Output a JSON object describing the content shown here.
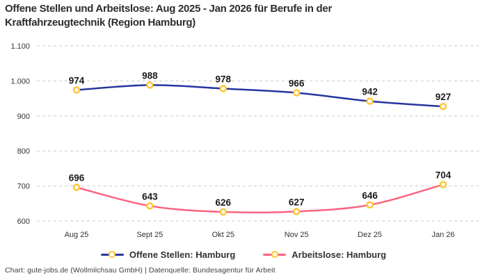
{
  "title": "Offene Stellen und Arbeitslose: Aug 2025 - Jan 2026 für Berufe in der Kraftfahrzeugtechnik (Region Hamburg)",
  "footer": "Chart: gute-jobs.de (Wollmilchsau GmbH) | Datenquelle: Bundesagentur für Arbeit",
  "colors": {
    "grid": "#c9c9c9",
    "tick_text": "#333333",
    "data_label_text": "#1a1a1a",
    "marker_stroke": "#ffc42e",
    "marker_fill": "#ffffff",
    "series_blue": "#27359e",
    "series_pink": "#fa647f"
  },
  "chart_data": {
    "type": "line",
    "title": "Offene Stellen und Arbeitslose: Aug 2025 - Jan 2026 für Berufe in der Kraftfahrzeugtechnik (Region Hamburg)",
    "categories": [
      "Aug 25",
      "Sept 25",
      "Okt 25",
      "Nov 25",
      "Dez 25",
      "Jan 26"
    ],
    "series": [
      {
        "name": "Offene Stellen: Hamburg",
        "color": "#27359e",
        "values": [
          974,
          988,
          978,
          966,
          942,
          927
        ]
      },
      {
        "name": "Arbeitslose: Hamburg",
        "color": "#fa647f",
        "values": [
          696,
          643,
          626,
          627,
          646,
          704
        ]
      }
    ],
    "ylim": [
      600,
      1100
    ],
    "yticks": [
      600,
      700,
      800,
      900,
      1000,
      1100
    ],
    "ytick_labels": [
      "600",
      "700",
      "800",
      "900",
      "1.000",
      "1.100"
    ],
    "grid": true,
    "legend_position": "bottom",
    "data_labels": true
  }
}
